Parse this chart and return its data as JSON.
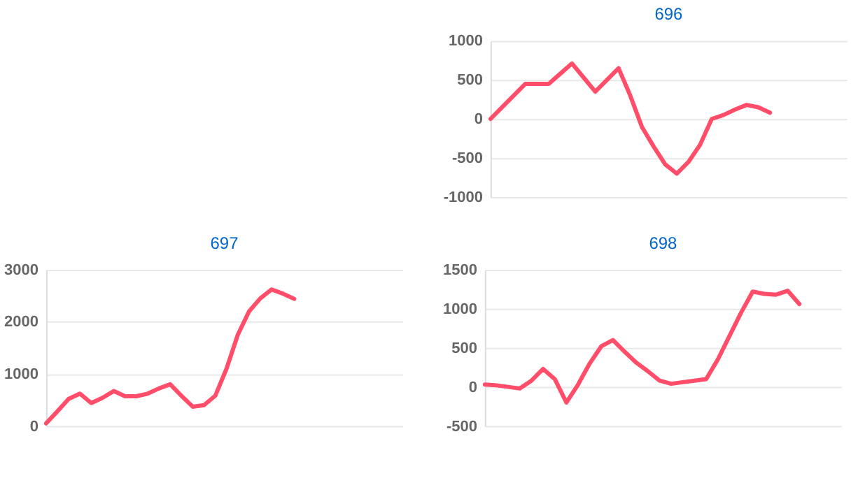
{
  "chart_data": [
    {
      "type": "line",
      "title": "696",
      "categories": [
        null,
        null,
        null,
        null,
        null,
        null,
        null,
        null,
        null,
        null,
        null,
        null,
        null,
        null,
        null,
        null,
        null,
        null,
        null,
        null,
        null,
        null,
        null,
        null,
        null,
        null,
        null,
        null,
        null,
        null,
        null
      ],
      "series": [
        {
          "color": "#ff4d6a",
          "values": [
            0,
            150,
            300,
            450,
            450,
            450,
            580,
            710,
            530,
            350,
            500,
            650,
            300,
            -100,
            -350,
            -580,
            -700,
            -550,
            -330,
            0,
            50,
            120,
            180,
            150,
            80,
            null,
            null,
            null,
            null,
            null,
            null
          ]
        }
      ],
      "ylim": [
        -1000,
        1000
      ],
      "yticks": [
        -1000,
        -500,
        0,
        500,
        1000
      ],
      "grid": "y",
      "tick_labels": "y"
    },
    {
      "type": "line",
      "title": "697",
      "categories": [
        null,
        null,
        null,
        null,
        null,
        null,
        null,
        null,
        null,
        null,
        null,
        null,
        null,
        null,
        null,
        null,
        null,
        null,
        null,
        null,
        null,
        null,
        null,
        null,
        null,
        null,
        null,
        null,
        null,
        null,
        null,
        null
      ],
      "series": [
        {
          "color": "#ff4d6a",
          "values": [
            50,
            280,
            520,
            620,
            440,
            540,
            670,
            570,
            570,
            620,
            720,
            800,
            580,
            370,
            400,
            580,
            1100,
            1750,
            2200,
            2450,
            2620,
            2540,
            2440,
            null,
            null,
            null,
            null,
            null,
            null,
            null,
            null,
            null
          ]
        }
      ],
      "ylim": [
        0,
        3000
      ],
      "yticks": [
        0,
        1000,
        2000,
        3000
      ],
      "grid": "y",
      "tick_labels": "y"
    },
    {
      "type": "line",
      "title": "698",
      "categories": [
        null,
        null,
        null,
        null,
        null,
        null,
        null,
        null,
        null,
        null,
        null,
        null,
        null,
        null,
        null,
        null,
        null,
        null,
        null,
        null,
        null,
        null,
        null,
        null,
        null,
        null,
        null,
        null,
        null,
        null,
        null
      ],
      "series": [
        {
          "color": "#ff4d6a",
          "values": [
            30,
            20,
            0,
            -20,
            80,
            230,
            100,
            -200,
            30,
            300,
            520,
            600,
            450,
            310,
            200,
            80,
            40,
            60,
            80,
            100,
            350,
            650,
            950,
            1220,
            1190,
            1180,
            1230,
            1060,
            null,
            null,
            null
          ]
        }
      ],
      "ylim": [
        -500,
        1500
      ],
      "yticks": [
        -500,
        0,
        500,
        1000,
        1500
      ],
      "grid": "y",
      "tick_labels": "y"
    }
  ]
}
